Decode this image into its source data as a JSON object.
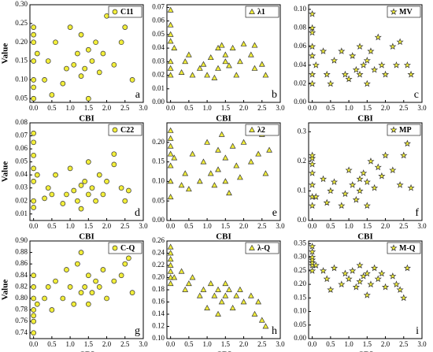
{
  "chart_data": [
    {
      "type": "scatter",
      "marker": "circle",
      "color": "#f2ee3a",
      "annotation": "a",
      "xlabel": "CBI",
      "ylabel": "Value",
      "series": [
        {
          "name": "C11",
          "x": [
            0,
            0,
            0,
            0,
            0,
            0,
            0,
            0.1,
            0.3,
            0.4,
            0.5,
            0.6,
            0.8,
            0.9,
            1.0,
            1.1,
            1.2,
            1.3,
            1.3,
            1.4,
            1.5,
            1.5,
            1.6,
            1.7,
            1.8,
            1.9,
            2.0,
            2.2,
            2.4,
            2.5,
            2.6,
            2.7
          ],
          "values": [
            0.05,
            0.08,
            0.1,
            0.15,
            0.2,
            0.22,
            0.24,
            0.17,
            0.1,
            0.15,
            0.06,
            0.2,
            0.09,
            0.13,
            0.24,
            0.14,
            0.17,
            0.11,
            0.22,
            0.13,
            0.05,
            0.18,
            0.15,
            0.2,
            0.12,
            0.17,
            0.27,
            0.14,
            0.2,
            0.24,
            0.28,
            0.1
          ]
        }
      ],
      "xlim": [
        -0.1,
        3.0
      ],
      "ylim": [
        0.04,
        0.3
      ],
      "xticks": [
        {
          "value": 0,
          "label": "0.0"
        },
        0.5,
        {
          "value": 1,
          "label": "1.0"
        },
        1.5,
        {
          "value": 2,
          "label": "2.0"
        },
        2.5,
        {
          "value": 3,
          "label": "3.0"
        }
      ],
      "yticks": [
        0.05,
        {
          "value": 0.1,
          "label": "0.10"
        },
        0.15,
        {
          "value": 0.2,
          "label": "0.20"
        },
        0.25,
        {
          "value": 0.3,
          "label": "0.30"
        }
      ]
    },
    {
      "type": "scatter",
      "marker": "triangle",
      "color": "#f2ee3a",
      "annotation": "b",
      "xlabel": "CBI",
      "series": [
        {
          "name": "λ1",
          "x": [
            0,
            0,
            0,
            0,
            0,
            0,
            0,
            0.1,
            0.3,
            0.4,
            0.5,
            0.6,
            0.8,
            0.9,
            1.0,
            1.1,
            1.2,
            1.3,
            1.3,
            1.4,
            1.5,
            1.5,
            1.6,
            1.7,
            1.8,
            1.9,
            2.0,
            2.2,
            2.3,
            2.3,
            2.5,
            2.6
          ],
          "values": [
            0.045,
            0.05,
            0.057,
            0.03,
            0.025,
            0.02,
            0.068,
            0.04,
            0.022,
            0.03,
            0.035,
            0.02,
            0.025,
            0.028,
            0.02,
            0.033,
            0.018,
            0.04,
            0.025,
            0.042,
            0.03,
            0.035,
            0.027,
            0.04,
            0.02,
            0.03,
            0.043,
            0.035,
            0.025,
            0.042,
            0.028,
            0.02
          ]
        }
      ],
      "xlim": [
        -0.1,
        3.0
      ],
      "ylim": [
        0,
        0.072
      ],
      "xticks": [
        {
          "value": 0,
          "label": "0.0"
        },
        0.5,
        {
          "value": 1,
          "label": "1.0"
        },
        1.5,
        {
          "value": 2,
          "label": "2.0"
        },
        2.5,
        {
          "value": 3,
          "label": "3.0"
        }
      ],
      "yticks": [
        {
          "value": 0,
          "label": "0.00"
        },
        0.01,
        0.02,
        0.03,
        0.04,
        0.05,
        0.06,
        0.07
      ]
    },
    {
      "type": "scatter",
      "marker": "star",
      "color": "#f2ee3a",
      "annotation": "c",
      "xlabel": "CBI",
      "series": [
        {
          "name": "MV",
          "x": [
            0,
            0,
            0,
            0,
            0,
            0,
            0,
            0.1,
            0.3,
            0.4,
            0.5,
            0.6,
            0.8,
            0.9,
            1.0,
            1.1,
            1.2,
            1.3,
            1.3,
            1.4,
            1.5,
            1.5,
            1.6,
            1.7,
            1.8,
            1.9,
            2.0,
            2.2,
            2.3,
            2.4,
            2.6,
            2.7
          ],
          "values": [
            0.02,
            0.03,
            0.05,
            0.06,
            0.075,
            0.08,
            0.095,
            0.04,
            0.055,
            0.03,
            0.02,
            0.045,
            0.055,
            0.03,
            0.025,
            0.05,
            0.035,
            0.06,
            0.03,
            0.04,
            0.045,
            0.02,
            0.055,
            0.035,
            0.07,
            0.04,
            0.03,
            0.06,
            0.04,
            0.065,
            0.04,
            0.03
          ]
        }
      ],
      "xlim": [
        -0.1,
        3.0
      ],
      "ylim": [
        0,
        0.105
      ],
      "xticks": [
        {
          "value": 0,
          "label": "0.0"
        },
        0.5,
        {
          "value": 1,
          "label": "1.0"
        },
        1.5,
        {
          "value": 2,
          "label": "2.0"
        },
        2.5,
        {
          "value": 3,
          "label": "3.0"
        }
      ],
      "yticks": [
        {
          "value": 0,
          "label": "0.00"
        },
        0.02,
        0.04,
        0.06,
        0.08,
        {
          "value": 0.1,
          "label": "0.10"
        }
      ]
    },
    {
      "type": "scatter",
      "marker": "circle",
      "color": "#f2ee3a",
      "annotation": "d",
      "xlabel": "CBI",
      "ylabel": "Value",
      "series": [
        {
          "name": "C22",
          "x": [
            0,
            0,
            0,
            0,
            0,
            0,
            0,
            0.1,
            0.3,
            0.4,
            0.5,
            0.6,
            0.8,
            0.9,
            1.0,
            1.1,
            1.2,
            1.3,
            1.3,
            1.4,
            1.5,
            1.5,
            1.6,
            1.7,
            1.8,
            1.9,
            2.0,
            2.2,
            2.4,
            2.5,
            2.6,
            2.2
          ],
          "values": [
            0.015,
            0.02,
            0.035,
            0.045,
            0.055,
            0.065,
            0.072,
            0.04,
            0.022,
            0.03,
            0.025,
            0.04,
            0.018,
            0.025,
            0.045,
            0.028,
            0.02,
            0.032,
            0.014,
            0.035,
            0.025,
            0.05,
            0.03,
            0.02,
            0.04,
            0.025,
            0.035,
            0.048,
            0.03,
            0.02,
            0.028,
            0.056
          ]
        }
      ],
      "xlim": [
        -0.1,
        3.0
      ],
      "ylim": [
        0.005,
        0.08
      ],
      "xticks": [
        {
          "value": 0,
          "label": "0.0"
        },
        0.5,
        {
          "value": 1,
          "label": "1.0"
        },
        1.5,
        {
          "value": 2,
          "label": "2.0"
        },
        2.5,
        {
          "value": 3,
          "label": "3.0"
        }
      ],
      "yticks": [
        0.01,
        0.02,
        0.03,
        0.04,
        0.05,
        0.06,
        0.07,
        0.08
      ]
    },
    {
      "type": "scatter",
      "marker": "triangle",
      "color": "#f2ee3a",
      "annotation": "e",
      "xlabel": "CBI",
      "series": [
        {
          "name": "λ2",
          "x": [
            0,
            0,
            0,
            0,
            0,
            0,
            0,
            0.1,
            0.3,
            0.4,
            0.5,
            0.6,
            0.8,
            0.9,
            1.0,
            1.1,
            1.2,
            1.3,
            1.3,
            1.4,
            1.5,
            1.5,
            1.6,
            1.7,
            1.8,
            1.9,
            2.0,
            2.2,
            2.4,
            2.5,
            2.6,
            2.7
          ],
          "values": [
            0.06,
            0.1,
            0.14,
            0.17,
            0.19,
            0.21,
            0.23,
            0.16,
            0.09,
            0.12,
            0.08,
            0.17,
            0.1,
            0.15,
            0.2,
            0.12,
            0.09,
            0.18,
            0.13,
            0.22,
            0.1,
            0.16,
            0.07,
            0.19,
            0.14,
            0.11,
            0.2,
            0.15,
            0.17,
            0.22,
            0.12,
            0.18
          ]
        }
      ],
      "xlim": [
        -0.1,
        3.0
      ],
      "ylim": [
        0,
        0.25
      ],
      "xticks": [
        {
          "value": 0,
          "label": "0.0"
        },
        0.5,
        {
          "value": 1,
          "label": "1.0"
        },
        1.5,
        {
          "value": 2,
          "label": "2.0"
        },
        2.5,
        {
          "value": 3,
          "label": "3.0"
        }
      ],
      "yticks": [
        {
          "value": 0,
          "label": "0.00"
        },
        0.05,
        {
          "value": 0.1,
          "label": "0.10"
        },
        0.15,
        {
          "value": 0.2,
          "label": "0.20"
        }
      ]
    },
    {
      "type": "scatter",
      "marker": "star",
      "color": "#f2ee3a",
      "annotation": "f",
      "xlabel": "CBI",
      "series": [
        {
          "name": "MP",
          "x": [
            0,
            0,
            0,
            0,
            0,
            0,
            0,
            0.1,
            0.3,
            0.4,
            0.5,
            0.6,
            0.8,
            0.9,
            1.0,
            1.1,
            1.2,
            1.3,
            1.3,
            1.4,
            1.5,
            1.5,
            1.6,
            1.7,
            1.8,
            1.9,
            2.0,
            2.2,
            2.4,
            2.5,
            2.6,
            2.7
          ],
          "values": [
            0.05,
            0.08,
            0.12,
            0.16,
            0.19,
            0.21,
            0.22,
            0.08,
            0.14,
            0.06,
            0.1,
            0.13,
            0.05,
            0.09,
            0.17,
            0.12,
            0.07,
            0.14,
            0.1,
            0.16,
            0.05,
            0.13,
            0.2,
            0.11,
            0.18,
            0.15,
            0.22,
            0.17,
            0.12,
            0.22,
            0.26,
            0.11
          ]
        }
      ],
      "xlim": [
        -0.1,
        3.0
      ],
      "ylim": [
        0,
        0.33
      ],
      "xticks": [
        {
          "value": 0,
          "label": "0.0"
        },
        0.5,
        {
          "value": 1,
          "label": "1.0"
        },
        1.5,
        {
          "value": 2,
          "label": "2.0"
        },
        2.5,
        {
          "value": 3,
          "label": "3.0"
        }
      ],
      "yticks": [
        {
          "value": 0,
          "label": "0.0"
        },
        0.1,
        0.2,
        0.3
      ]
    },
    {
      "type": "scatter",
      "marker": "circle",
      "color": "#f2ee3a",
      "annotation": "g",
      "xlabel": "CBI",
      "ylabel": "Value",
      "series": [
        {
          "name": "C-Q",
          "x": [
            0,
            0,
            0,
            0,
            0,
            0,
            0,
            0.1,
            0.3,
            0.4,
            0.5,
            0.6,
            0.8,
            0.9,
            1.0,
            1.1,
            1.2,
            1.3,
            1.3,
            1.4,
            1.5,
            1.5,
            1.6,
            1.7,
            1.8,
            1.9,
            2.0,
            2.2,
            2.4,
            2.5,
            2.6,
            2.7
          ],
          "values": [
            0.74,
            0.76,
            0.77,
            0.78,
            0.8,
            0.82,
            0.84,
            0.79,
            0.8,
            0.82,
            0.78,
            0.83,
            0.8,
            0.85,
            0.82,
            0.79,
            0.86,
            0.81,
            0.88,
            0.82,
            0.79,
            0.84,
            0.81,
            0.83,
            0.82,
            0.85,
            0.8,
            0.83,
            0.84,
            0.86,
            0.87,
            0.81
          ]
        }
      ],
      "xlim": [
        -0.1,
        3.0
      ],
      "ylim": [
        0.73,
        0.9
      ],
      "xticks": [
        {
          "value": 0,
          "label": "0.0"
        },
        0.5,
        {
          "value": 1,
          "label": "1.0"
        },
        1.5,
        {
          "value": 2,
          "label": "2.0"
        },
        2.5,
        {
          "value": 3,
          "label": "3.0"
        }
      ],
      "yticks": [
        0.74,
        0.76,
        0.78,
        {
          "value": 0.8,
          "label": "0.80"
        },
        0.82,
        0.84,
        0.86,
        0.88,
        {
          "value": 0.9,
          "label": "0.90"
        }
      ]
    },
    {
      "type": "scatter",
      "marker": "triangle",
      "color": "#f2ee3a",
      "annotation": "h",
      "xlabel": "CBI",
      "series": [
        {
          "name": "λ-Q",
          "x": [
            0,
            0,
            0,
            0,
            0,
            0,
            0,
            0.1,
            0.3,
            0.4,
            0.5,
            0.6,
            0.8,
            0.9,
            1.0,
            1.1,
            1.2,
            1.3,
            1.3,
            1.4,
            1.5,
            1.5,
            1.6,
            1.7,
            1.8,
            1.9,
            2.0,
            2.2,
            2.3,
            2.4,
            2.5,
            2.6
          ],
          "values": [
            0.19,
            0.2,
            0.21,
            0.22,
            0.23,
            0.24,
            0.25,
            0.2,
            0.21,
            0.18,
            0.19,
            0.2,
            0.17,
            0.18,
            0.15,
            0.19,
            0.17,
            0.14,
            0.18,
            0.16,
            0.19,
            0.17,
            0.18,
            0.15,
            0.17,
            0.18,
            0.16,
            0.17,
            0.14,
            0.16,
            0.13,
            0.12
          ]
        }
      ],
      "xlim": [
        -0.1,
        3.0
      ],
      "ylim": [
        0.1,
        0.26
      ],
      "xticks": [
        {
          "value": 0,
          "label": "0.0"
        },
        0.5,
        {
          "value": 1,
          "label": "1.0"
        },
        1.5,
        {
          "value": 2,
          "label": "2.0"
        },
        2.5,
        {
          "value": 3,
          "label": "3.0"
        }
      ],
      "yticks": [
        {
          "value": 0.1,
          "label": "0.10"
        },
        0.12,
        0.14,
        0.16,
        0.18,
        {
          "value": 0.2,
          "label": "0.20"
        },
        0.22,
        0.24,
        0.26
      ]
    },
    {
      "type": "scatter",
      "marker": "star",
      "color": "#f2ee3a",
      "annotation": "i",
      "xlabel": "CBI",
      "series": [
        {
          "name": "M-Q",
          "x": [
            0,
            0,
            0,
            0,
            0,
            0,
            0,
            0.1,
            0.3,
            0.4,
            0.5,
            0.6,
            0.8,
            0.9,
            1.0,
            1.1,
            1.2,
            1.3,
            1.3,
            1.4,
            1.5,
            1.5,
            1.6,
            1.7,
            1.8,
            1.9,
            2.0,
            2.2,
            2.3,
            2.4,
            2.5,
            2.6
          ],
          "values": [
            0.25,
            0.27,
            0.28,
            0.29,
            0.3,
            0.32,
            0.34,
            0.27,
            0.25,
            0.22,
            0.18,
            0.26,
            0.2,
            0.24,
            0.22,
            0.25,
            0.19,
            0.21,
            0.27,
            0.23,
            0.16,
            0.24,
            0.2,
            0.26,
            0.22,
            0.24,
            0.19,
            0.23,
            0.2,
            0.18,
            0.15,
            0.26
          ]
        }
      ],
      "xlim": [
        -0.1,
        3.0
      ],
      "ylim": [
        0,
        0.36
      ],
      "xticks": [
        {
          "value": 0,
          "label": "0.0"
        },
        0.5,
        {
          "value": 1,
          "label": "1.0"
        },
        1.5,
        {
          "value": 2,
          "label": "2.0"
        },
        2.5,
        {
          "value": 3,
          "label": "3.0"
        }
      ],
      "yticks": [
        {
          "value": 0,
          "label": "0.00"
        },
        0.05,
        {
          "value": 0.1,
          "label": "0.10"
        },
        0.15,
        {
          "value": 0.2,
          "label": "0.20"
        },
        0.25,
        {
          "value": 0.3,
          "label": "0.30"
        },
        0.35
      ]
    }
  ]
}
